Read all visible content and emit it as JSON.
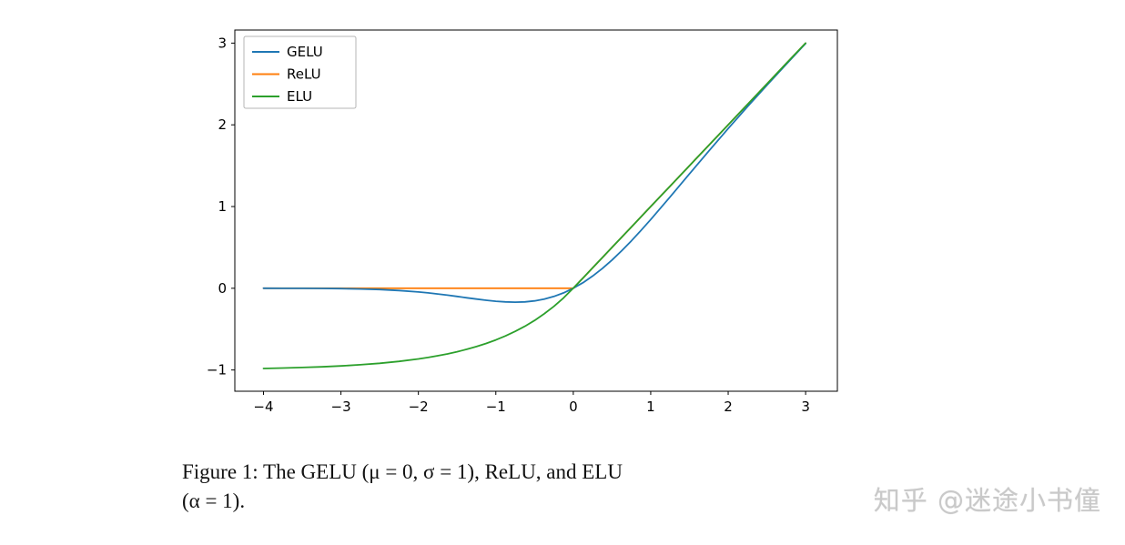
{
  "figure": {
    "caption_lines": [
      "Figure 1: The GELU (μ = 0, σ = 1), ReLU, and ELU",
      "(α = 1)."
    ]
  },
  "watermark": {
    "text": "知乎 @迷途小书僮"
  },
  "chart_data": {
    "type": "line",
    "title": "",
    "xlabel": "",
    "ylabel": "",
    "grid": false,
    "legend_position": "upper left",
    "legend_entries": [
      "GELU",
      "ReLU",
      "ELU"
    ],
    "xlim": [
      -4.37,
      3.41
    ],
    "ylim": [
      -1.26,
      3.16
    ],
    "x_ticks": [
      -4,
      -3,
      -2,
      -1,
      0,
      1,
      2,
      3
    ],
    "y_ticks": [
      -1,
      0,
      1,
      2,
      3
    ],
    "draw_order": [
      1,
      0,
      2
    ],
    "x": [
      -4,
      -3.75,
      -3.5,
      -3.25,
      -3,
      -2.75,
      -2.5,
      -2.25,
      -2,
      -1.875,
      -1.75,
      -1.625,
      -1.5,
      -1.375,
      -1.25,
      -1.125,
      -1,
      -0.875,
      -0.75,
      -0.625,
      -0.5,
      -0.375,
      -0.25,
      -0.125,
      0,
      0.125,
      0.25,
      0.375,
      0.5,
      0.625,
      0.75,
      0.875,
      1,
      1.25,
      1.5,
      1.75,
      2,
      2.25,
      2.5,
      2.75,
      3
    ],
    "series": [
      {
        "name": "GELU",
        "color": "#1f77b4",
        "values": [
          -0.0001,
          -0.0003,
          -0.0008,
          -0.0019,
          -0.004,
          -0.0082,
          -0.0155,
          -0.0275,
          -0.0455,
          -0.057,
          -0.0701,
          -0.0847,
          -0.1002,
          -0.1163,
          -0.1321,
          -0.1466,
          -0.1587,
          -0.167,
          -0.17,
          -0.1663,
          -0.1543,
          -0.1327,
          -0.1003,
          -0.0563,
          0,
          0.0687,
          0.1497,
          0.2423,
          0.3457,
          0.4588,
          0.58,
          0.7081,
          0.8413,
          1.1179,
          1.3998,
          1.6799,
          1.9545,
          2.2225,
          2.4845,
          2.7418,
          2.996
        ]
      },
      {
        "name": "ReLU",
        "color": "#ff7f0e",
        "values": [
          0,
          0,
          0,
          0,
          0,
          0,
          0,
          0,
          0,
          0,
          0,
          0,
          0,
          0,
          0,
          0,
          0,
          0,
          0,
          0,
          0,
          0,
          0,
          0,
          0,
          0.125,
          0.25,
          0.375,
          0.5,
          0.625,
          0.75,
          0.875,
          1,
          1.25,
          1.5,
          1.75,
          2,
          2.25,
          2.5,
          2.75,
          3
        ]
      },
      {
        "name": "ELU",
        "color": "#2ca02c",
        "values": [
          -0.9817,
          -0.9765,
          -0.9698,
          -0.9612,
          -0.9502,
          -0.9361,
          -0.9179,
          -0.8946,
          -0.8647,
          -0.8466,
          -0.8262,
          -0.8031,
          -0.7769,
          -0.7472,
          -0.7135,
          -0.6753,
          -0.6321,
          -0.5831,
          -0.5276,
          -0.4647,
          -0.3935,
          -0.3127,
          -0.2212,
          -0.1175,
          0,
          0.125,
          0.25,
          0.375,
          0.5,
          0.625,
          0.75,
          0.875,
          1,
          1.25,
          1.5,
          1.75,
          2,
          2.25,
          2.5,
          2.75,
          3
        ]
      }
    ]
  }
}
